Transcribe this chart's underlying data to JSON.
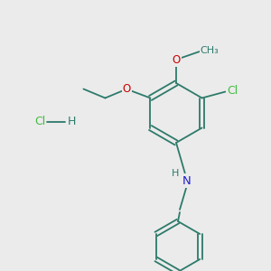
{
  "background_color": "#ebebeb",
  "bond_color": "#2d7a6a",
  "bond_width": 1.3,
  "atom_colors": {
    "O": "#cc0000",
    "N": "#2020cc",
    "Cl_green": "#44bb44",
    "Cl_hcl": "#44bb44",
    "H": "#2d7a6a",
    "C": "#2d7a6a"
  },
  "font_size": 8.5
}
